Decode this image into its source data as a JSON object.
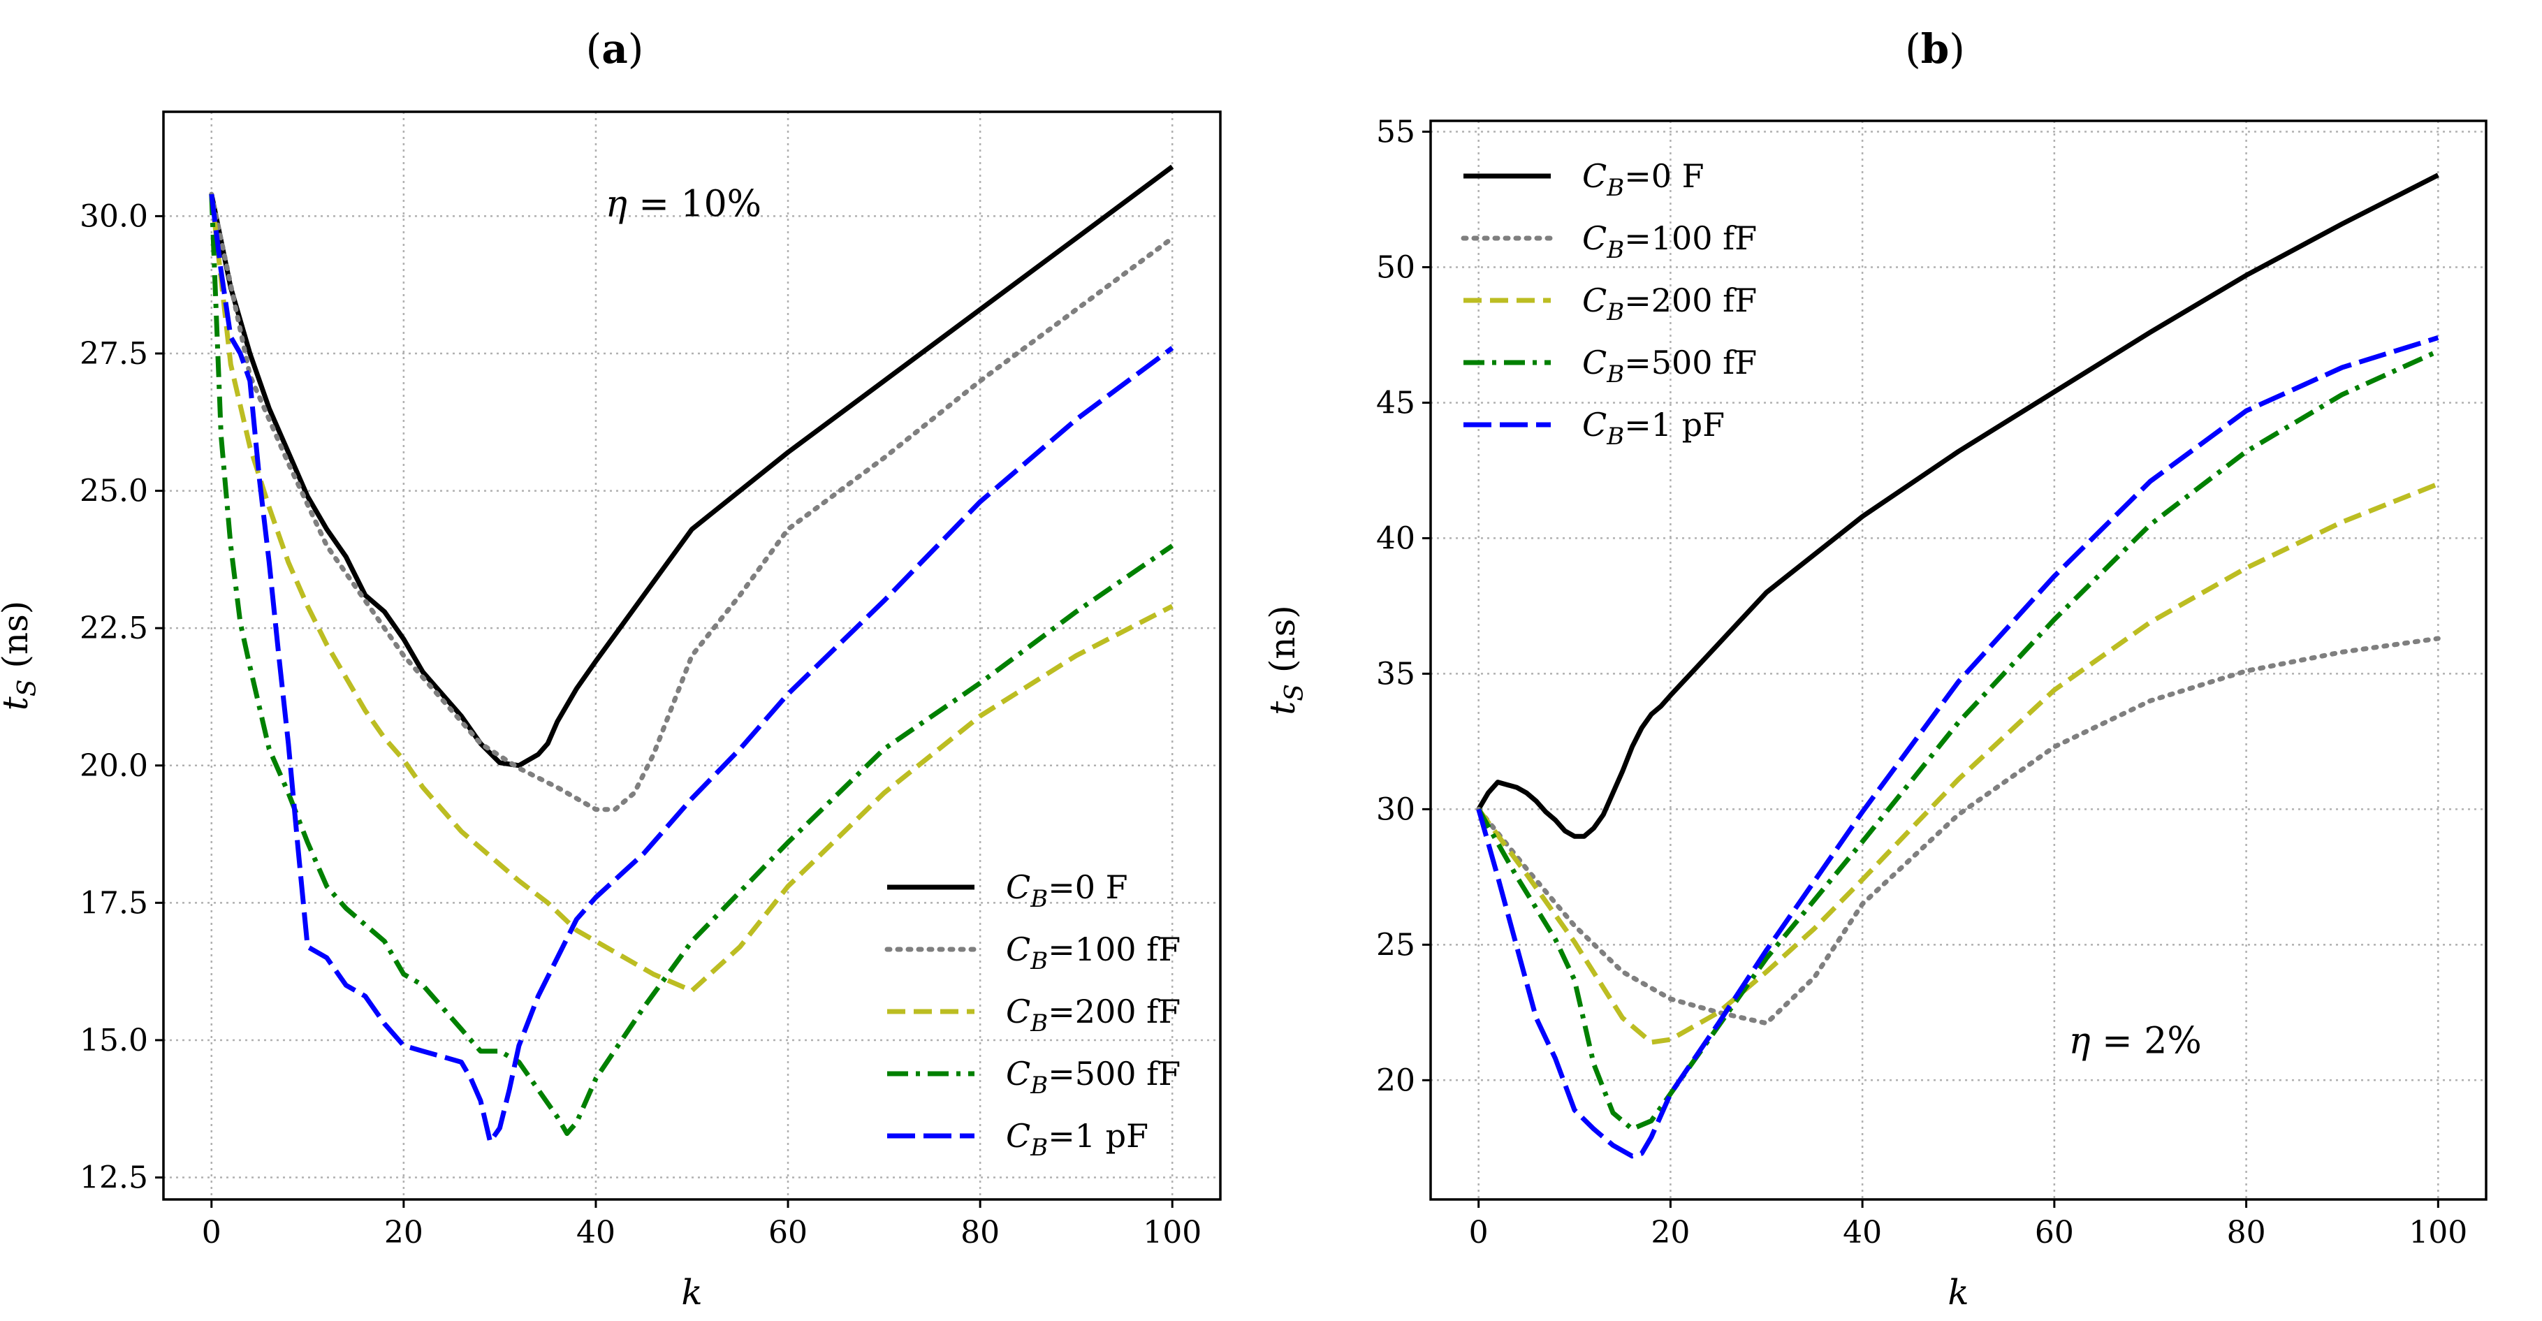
{
  "chart_data": [
    {
      "type": "line",
      "title": "(a)",
      "title_letter": "a",
      "xlabel": "k",
      "ylabel": "t_S (ns)",
      "ylabel_main": "t",
      "ylabel_sub": "S",
      "ylabel_unit": " (ns)",
      "xlim": [
        -5,
        105
      ],
      "ylim": [
        12.1,
        31.9
      ],
      "xticks": [
        0,
        20,
        40,
        60,
        80,
        100
      ],
      "yticks": [
        12.5,
        15.0,
        17.5,
        20.0,
        22.5,
        25.0,
        27.5,
        30.0
      ],
      "ytick_labels": [
        "12.5",
        "15.0",
        "17.5",
        "20.0",
        "22.5",
        "25.0",
        "27.5",
        "30.0"
      ],
      "grid": true,
      "legend_position": "lower-right",
      "annotation": {
        "symbol": "η",
        "text": " = 10%",
        "x": 41,
        "y": 30.0
      },
      "series": [
        {
          "name": "C_B=0 F",
          "label_sub": "B",
          "label_value": "=0 F",
          "color": "#000000",
          "dash": "solid",
          "x": [
            0,
            2,
            4,
            6,
            8,
            10,
            12,
            14,
            16,
            18,
            20,
            22,
            24,
            26,
            28,
            30,
            32,
            34,
            35,
            36,
            38,
            40,
            45,
            50,
            60,
            70,
            80,
            90,
            100
          ],
          "y": [
            30.4,
            28.7,
            27.5,
            26.5,
            25.7,
            24.9,
            24.3,
            23.8,
            23.1,
            22.8,
            22.3,
            21.7,
            21.3,
            20.9,
            20.4,
            20.05,
            20.0,
            20.2,
            20.4,
            20.8,
            21.4,
            21.9,
            23.1,
            24.3,
            25.7,
            27.0,
            28.3,
            29.6,
            30.9
          ]
        },
        {
          "name": "C_B=100 fF",
          "label_sub": "B",
          "label_value": "=100 fF",
          "color": "#7f7f7f",
          "dash": "dotted",
          "x": [
            0,
            4,
            8,
            12,
            16,
            20,
            24,
            28,
            32,
            36,
            40,
            42,
            44,
            46,
            50,
            55,
            60,
            70,
            80,
            90,
            100
          ],
          "y": [
            30.4,
            27.1,
            25.5,
            24.0,
            23.0,
            22.0,
            21.2,
            20.4,
            19.95,
            19.6,
            19.2,
            19.2,
            19.5,
            20.2,
            22.0,
            23.1,
            24.3,
            25.6,
            27.0,
            28.3,
            29.6
          ]
        },
        {
          "name": "C_B=200 fF",
          "label_sub": "B",
          "label_value": "=200 fF",
          "color": "#bcbd22",
          "dash": "dashed",
          "x": [
            0,
            2,
            4,
            6,
            8,
            10,
            12,
            14,
            16,
            18,
            20,
            22,
            24,
            26,
            28,
            30,
            32,
            35,
            38,
            42,
            46,
            50,
            55,
            60,
            70,
            80,
            90,
            100
          ],
          "y": [
            30.4,
            27.3,
            25.8,
            24.7,
            23.7,
            22.9,
            22.2,
            21.6,
            21.0,
            20.5,
            20.1,
            19.6,
            19.2,
            18.8,
            18.5,
            18.2,
            17.9,
            17.5,
            17.0,
            16.6,
            16.2,
            15.9,
            16.7,
            17.8,
            19.5,
            20.9,
            22.0,
            22.9
          ]
        },
        {
          "name": "C_B=500 fF",
          "label_sub": "B",
          "label_value": "=500 fF",
          "color": "#008000",
          "dash": "dashdot",
          "x": [
            0,
            1,
            2,
            3,
            4,
            6,
            8,
            10,
            12,
            14,
            16,
            18,
            20,
            22,
            24,
            26,
            28,
            30,
            32,
            34,
            36,
            37,
            38,
            40,
            45,
            50,
            55,
            60,
            70,
            80,
            90,
            100
          ],
          "y": [
            30.4,
            26.0,
            24.0,
            22.6,
            21.8,
            20.3,
            19.5,
            18.6,
            17.8,
            17.4,
            17.1,
            16.8,
            16.2,
            16.0,
            15.6,
            15.2,
            14.8,
            14.8,
            14.6,
            14.1,
            13.6,
            13.3,
            13.5,
            14.3,
            15.6,
            16.8,
            17.7,
            18.6,
            20.3,
            21.5,
            22.8,
            24.0
          ]
        },
        {
          "name": "C_B=1 pF",
          "label_sub": "B",
          "label_value": "=1 pF",
          "color": "#0000ff",
          "dash": "longdash",
          "x": [
            0,
            1,
            2,
            3,
            4,
            5,
            6,
            7,
            8,
            9,
            10,
            12,
            14,
            16,
            18,
            20,
            22,
            24,
            26,
            27,
            28,
            29,
            30,
            31,
            32,
            34,
            36,
            38,
            40,
            45,
            50,
            55,
            60,
            70,
            80,
            90,
            100
          ],
          "y": [
            30.4,
            29.0,
            27.8,
            27.5,
            27.0,
            25.2,
            23.7,
            22.0,
            20.4,
            18.5,
            16.7,
            16.5,
            16.0,
            15.8,
            15.3,
            14.9,
            14.8,
            14.7,
            14.6,
            14.3,
            13.9,
            13.15,
            13.4,
            14.1,
            14.9,
            15.8,
            16.5,
            17.2,
            17.6,
            18.4,
            19.4,
            20.3,
            21.3,
            23.0,
            24.8,
            26.3,
            27.6
          ]
        }
      ]
    },
    {
      "type": "line",
      "title": "(b)",
      "title_letter": "b",
      "xlabel": "k",
      "ylabel": "t_S (ns)",
      "ylabel_main": "t",
      "ylabel_sub": "S",
      "ylabel_unit": " (ns)",
      "xlim": [
        -5,
        105
      ],
      "ylim": [
        15.6,
        55.4
      ],
      "xticks": [
        0,
        20,
        40,
        60,
        80,
        100
      ],
      "yticks": [
        20,
        25,
        30,
        35,
        40,
        45,
        50,
        55
      ],
      "ytick_labels": [
        "20",
        "25",
        "30",
        "35",
        "40",
        "45",
        "50",
        "55"
      ],
      "grid": true,
      "legend_position": "upper-left",
      "annotation": {
        "symbol": "η",
        "text": " = 2%",
        "x": 61.5,
        "y": 21.0
      },
      "series": [
        {
          "name": "C_B=0 F",
          "label_sub": "B",
          "label_value": "=0 F",
          "color": "#000000",
          "dash": "solid",
          "x": [
            0,
            1,
            2,
            3,
            4,
            5,
            6,
            7,
            8,
            9,
            10,
            11,
            12,
            13,
            14,
            15,
            16,
            17,
            18,
            19,
            20,
            25,
            30,
            40,
            50,
            60,
            70,
            80,
            90,
            100
          ],
          "y": [
            30.0,
            30.6,
            31.0,
            30.9,
            30.8,
            30.6,
            30.3,
            29.9,
            29.6,
            29.2,
            29.0,
            29.0,
            29.3,
            29.8,
            30.6,
            31.4,
            32.3,
            33.0,
            33.5,
            33.8,
            34.2,
            36.1,
            38.0,
            40.8,
            43.2,
            45.4,
            47.6,
            49.7,
            51.6,
            53.4
          ]
        },
        {
          "name": "C_B=100 fF",
          "label_sub": "B",
          "label_value": "=100 fF",
          "color": "#7f7f7f",
          "dash": "dotted",
          "x": [
            0,
            5,
            10,
            15,
            20,
            25,
            30,
            35,
            40,
            50,
            60,
            70,
            80,
            90,
            100
          ],
          "y": [
            30.0,
            27.8,
            25.7,
            24.0,
            23.0,
            22.5,
            22.1,
            23.8,
            26.5,
            29.8,
            32.3,
            34.0,
            35.1,
            35.8,
            36.3
          ]
        },
        {
          "name": "C_B=200 fF",
          "label_sub": "B",
          "label_value": "=200 fF",
          "color": "#bcbd22",
          "dash": "dashed",
          "x": [
            0,
            5,
            10,
            15,
            18,
            20,
            25,
            30,
            35,
            40,
            50,
            60,
            70,
            80,
            90,
            100
          ],
          "y": [
            30.0,
            27.6,
            25.1,
            22.3,
            21.4,
            21.5,
            22.5,
            24.0,
            25.6,
            27.4,
            31.1,
            34.4,
            36.9,
            38.9,
            40.6,
            42.0
          ]
        },
        {
          "name": "C_B=500 fF",
          "label_sub": "B",
          "label_value": "=500 fF",
          "color": "#008000",
          "dash": "dashdot",
          "x": [
            0,
            4,
            8,
            10,
            12,
            14,
            16,
            18,
            20,
            25,
            30,
            40,
            50,
            60,
            70,
            80,
            90,
            100
          ],
          "y": [
            30.0,
            27.5,
            25.2,
            23.7,
            20.6,
            18.8,
            18.2,
            18.5,
            19.5,
            22.0,
            24.5,
            28.8,
            33.2,
            37.0,
            40.5,
            43.2,
            45.3,
            46.9
          ]
        },
        {
          "name": "C_B=1 pF",
          "label_sub": "B",
          "label_value": "=1 pF",
          "color": "#0000ff",
          "dash": "longdash",
          "x": [
            0,
            2,
            4,
            6,
            8,
            10,
            12,
            14,
            15,
            16,
            17,
            18,
            20,
            25,
            30,
            40,
            50,
            60,
            70,
            80,
            90,
            100
          ],
          "y": [
            30.0,
            27.5,
            24.9,
            22.3,
            20.8,
            18.9,
            18.2,
            17.6,
            17.4,
            17.2,
            17.3,
            17.9,
            19.5,
            22.1,
            24.8,
            29.9,
            34.7,
            38.6,
            42.1,
            44.7,
            46.3,
            47.4
          ]
        }
      ]
    }
  ]
}
